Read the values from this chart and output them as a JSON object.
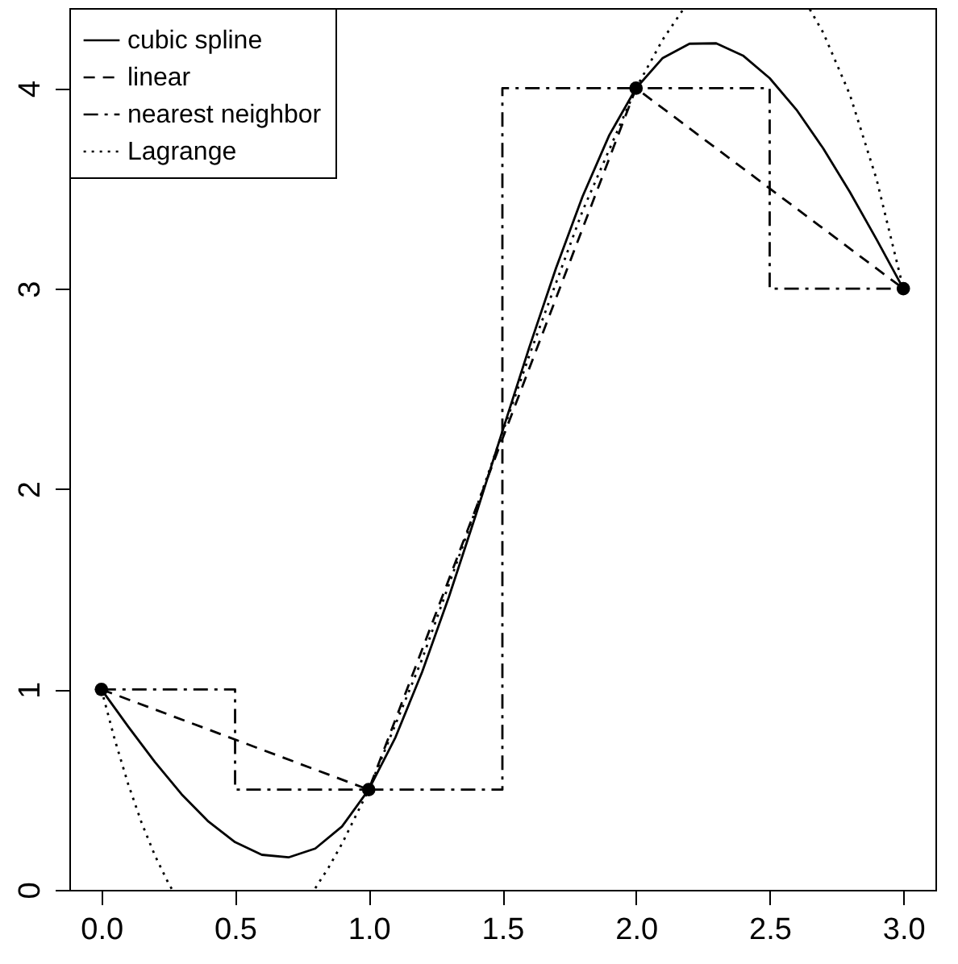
{
  "chart_data": {
    "type": "line",
    "xlim": [
      -0.12,
      3.12
    ],
    "ylim": [
      0,
      4.4
    ],
    "xticks": [
      {
        "value": 0,
        "label": "0.0"
      },
      {
        "value": 0.5,
        "label": "0.5"
      },
      {
        "value": 1,
        "label": "1.0"
      },
      {
        "value": 1.5,
        "label": "1.5"
      },
      {
        "value": 2,
        "label": "2.0"
      },
      {
        "value": 2.5,
        "label": "2.5"
      },
      {
        "value": 3,
        "label": "3.0"
      }
    ],
    "yticks": [
      0,
      1,
      2,
      3,
      4
    ],
    "grid": false,
    "legend": "top left",
    "series": [
      {
        "name": "cubic spline",
        "color": "#000000",
        "line_style": "solid",
        "x": [
          0,
          0.1,
          0.2,
          0.3,
          0.4,
          0.5,
          0.6,
          0.7,
          0.8,
          0.9,
          1,
          1.1,
          1.2,
          1.3,
          1.4,
          1.5,
          1.6,
          1.7,
          1.8,
          1.9,
          2,
          2.1,
          2.2,
          2.3,
          2.4,
          2.5,
          2.6,
          2.7,
          2.8,
          2.9,
          3
        ],
        "values": [
          1,
          0.815,
          0.638,
          0.477,
          0.341,
          0.238,
          0.175,
          0.162,
          0.206,
          0.316,
          0.5,
          0.761,
          1.088,
          1.462,
          1.868,
          2.288,
          2.704,
          3.1,
          3.46,
          3.766,
          4,
          4.151,
          4.222,
          4.224,
          4.163,
          4.05,
          3.893,
          3.7,
          3.482,
          3.245,
          3
        ]
      },
      {
        "name": "linear",
        "color": "#000000",
        "line_style": "dashed",
        "x": [
          0,
          1,
          2,
          3
        ],
        "values": [
          1,
          0.5,
          4,
          3
        ]
      },
      {
        "name": "nearest neighbor",
        "type": "step",
        "color": "#000000",
        "line_style": "dashdot",
        "x": [
          0,
          1,
          2,
          3
        ],
        "values": [
          1,
          0.5,
          4,
          3
        ]
      },
      {
        "name": "Lagrange",
        "color": "#000000",
        "line_style": "dotted",
        "x": [
          0,
          0.05,
          0.1,
          0.15,
          0.2,
          0.25,
          0.265,
          0.7,
          0.8,
          0.85,
          0.9,
          1,
          1.2,
          1.4,
          1.6,
          1.8,
          2,
          2.1,
          2.18,
          2.4,
          2.65,
          2.7,
          2.8,
          2.9,
          3
        ],
        "values": [
          1,
          0.749,
          0.528,
          0.336,
          0.172,
          0.035,
          0,
          null,
          0.008,
          0.112,
          0.23,
          0.5,
          1.152,
          1.896,
          2.664,
          3.388,
          4,
          4.243,
          4.4,
          null,
          4.394,
          4.278,
          3.968,
          3.545,
          3
        ]
      },
      {
        "type": "scatter",
        "color": "#000000",
        "marker": "circle",
        "x": [
          0,
          1,
          2,
          3
        ],
        "values": [
          1,
          0.5,
          4,
          3
        ]
      }
    ]
  }
}
